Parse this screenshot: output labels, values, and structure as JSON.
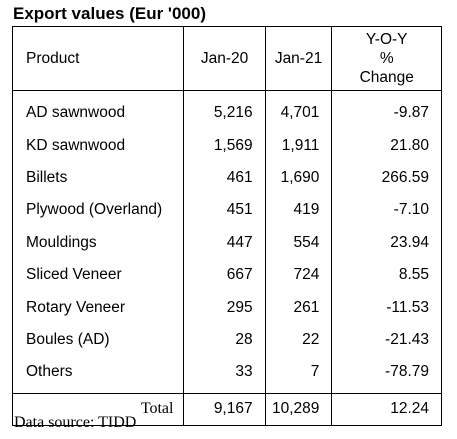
{
  "title": "Export values (Eur '000)",
  "headers": {
    "product": "Product",
    "jan20": "Jan-20",
    "jan21": "Jan-21",
    "yoy_line1": "Y-O-Y",
    "yoy_line2": "%",
    "yoy_line3": "Change"
  },
  "rows": [
    {
      "product": "AD sawnwood",
      "jan20": "5,216",
      "jan21": "4,701",
      "yoy": "-9.87"
    },
    {
      "product": "KD sawnwood",
      "jan20": "1,569",
      "jan21": "1,911",
      "yoy": "21.80"
    },
    {
      "product": "Billets",
      "jan20": "461",
      "jan21": "1,690",
      "yoy": "266.59"
    },
    {
      "product": "Plywood (Overland)",
      "jan20": "451",
      "jan21": "419",
      "yoy": "-7.10"
    },
    {
      "product": "Mouldings",
      "jan20": "447",
      "jan21": "554",
      "yoy": "23.94"
    },
    {
      "product": "Sliced Veneer",
      "jan20": "667",
      "jan21": "724",
      "yoy": "8.55"
    },
    {
      "product": "Rotary Veneer",
      "jan20": "295",
      "jan21": "261",
      "yoy": "-11.53"
    },
    {
      "product": "Boules (AD)",
      "jan20": "28",
      "jan21": "22",
      "yoy": "-21.43"
    },
    {
      "product": "Others",
      "jan20": "33",
      "jan21": "7",
      "yoy": "-78.79"
    }
  ],
  "total": {
    "label": "Total",
    "jan20": "9,167",
    "jan21": "10,289",
    "yoy": "12.24"
  },
  "source": "Data source: TIDD"
}
